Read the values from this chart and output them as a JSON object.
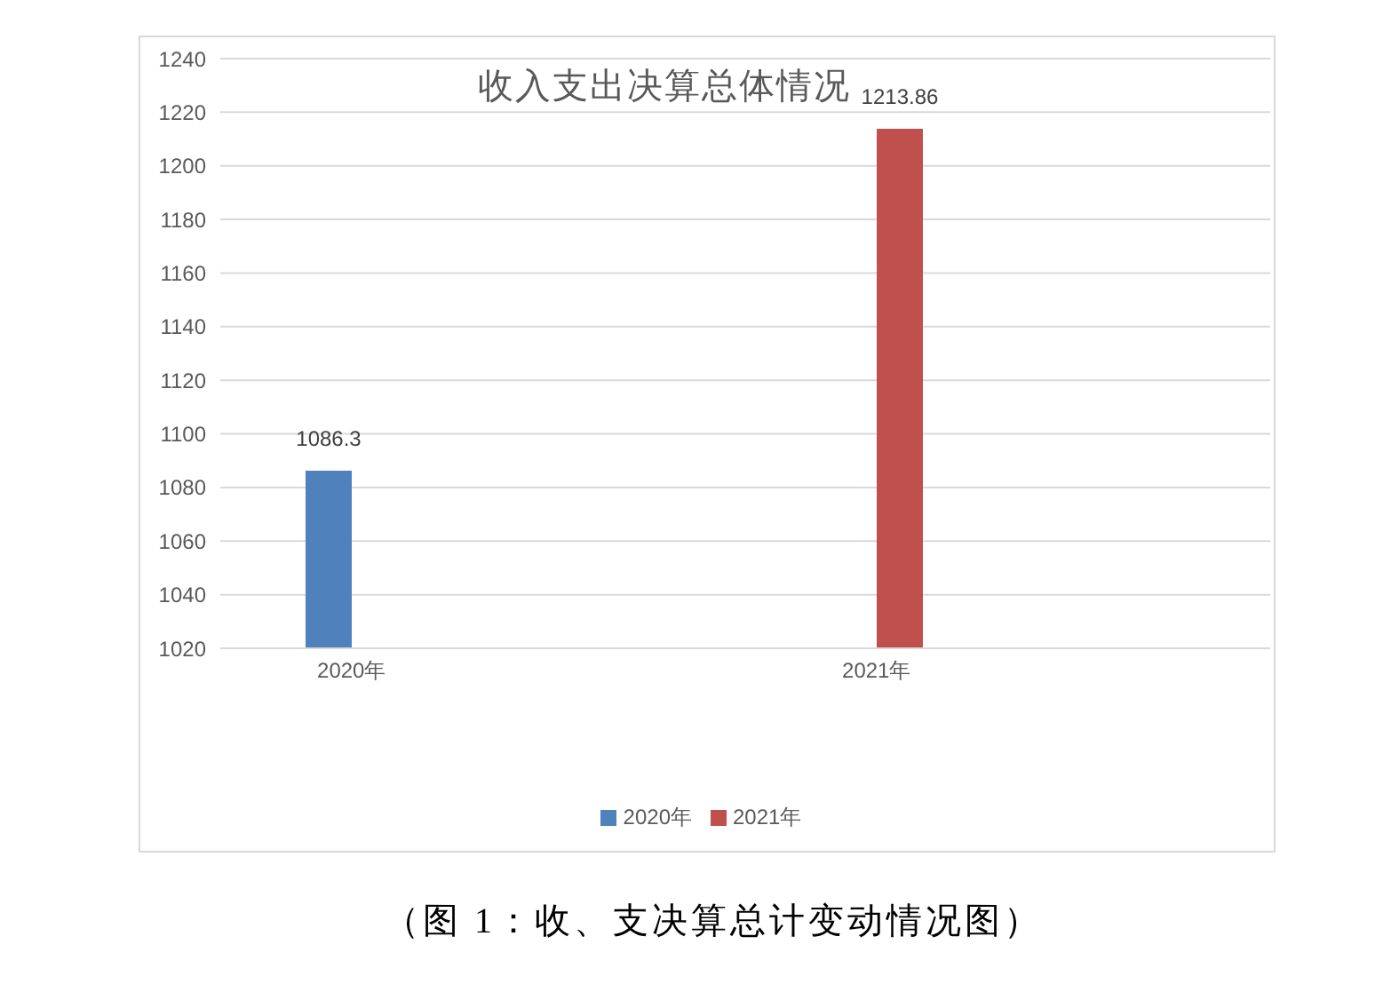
{
  "chart_data": {
    "type": "bar",
    "title": "收入支出决算总体情况",
    "categories": [
      "2020年",
      null,
      "2021年",
      null
    ],
    "series": [
      {
        "name": "2020年",
        "color": "#4f81bd",
        "values": [
          1086.3,
          null,
          null,
          null
        ]
      },
      {
        "name": "2021年",
        "color": "#c0504d",
        "values": [
          null,
          null,
          1213.86,
          null
        ]
      }
    ],
    "ylim": [
      1020,
      1240
    ],
    "yticks": [
      1020,
      1040,
      1060,
      1080,
      1100,
      1120,
      1140,
      1160,
      1180,
      1200,
      1220,
      1240
    ],
    "grid": "y",
    "legend": "bottom",
    "data_labels": true,
    "annotations": [
      "（图 1：收、支决算总计变动情况图）"
    ]
  }
}
